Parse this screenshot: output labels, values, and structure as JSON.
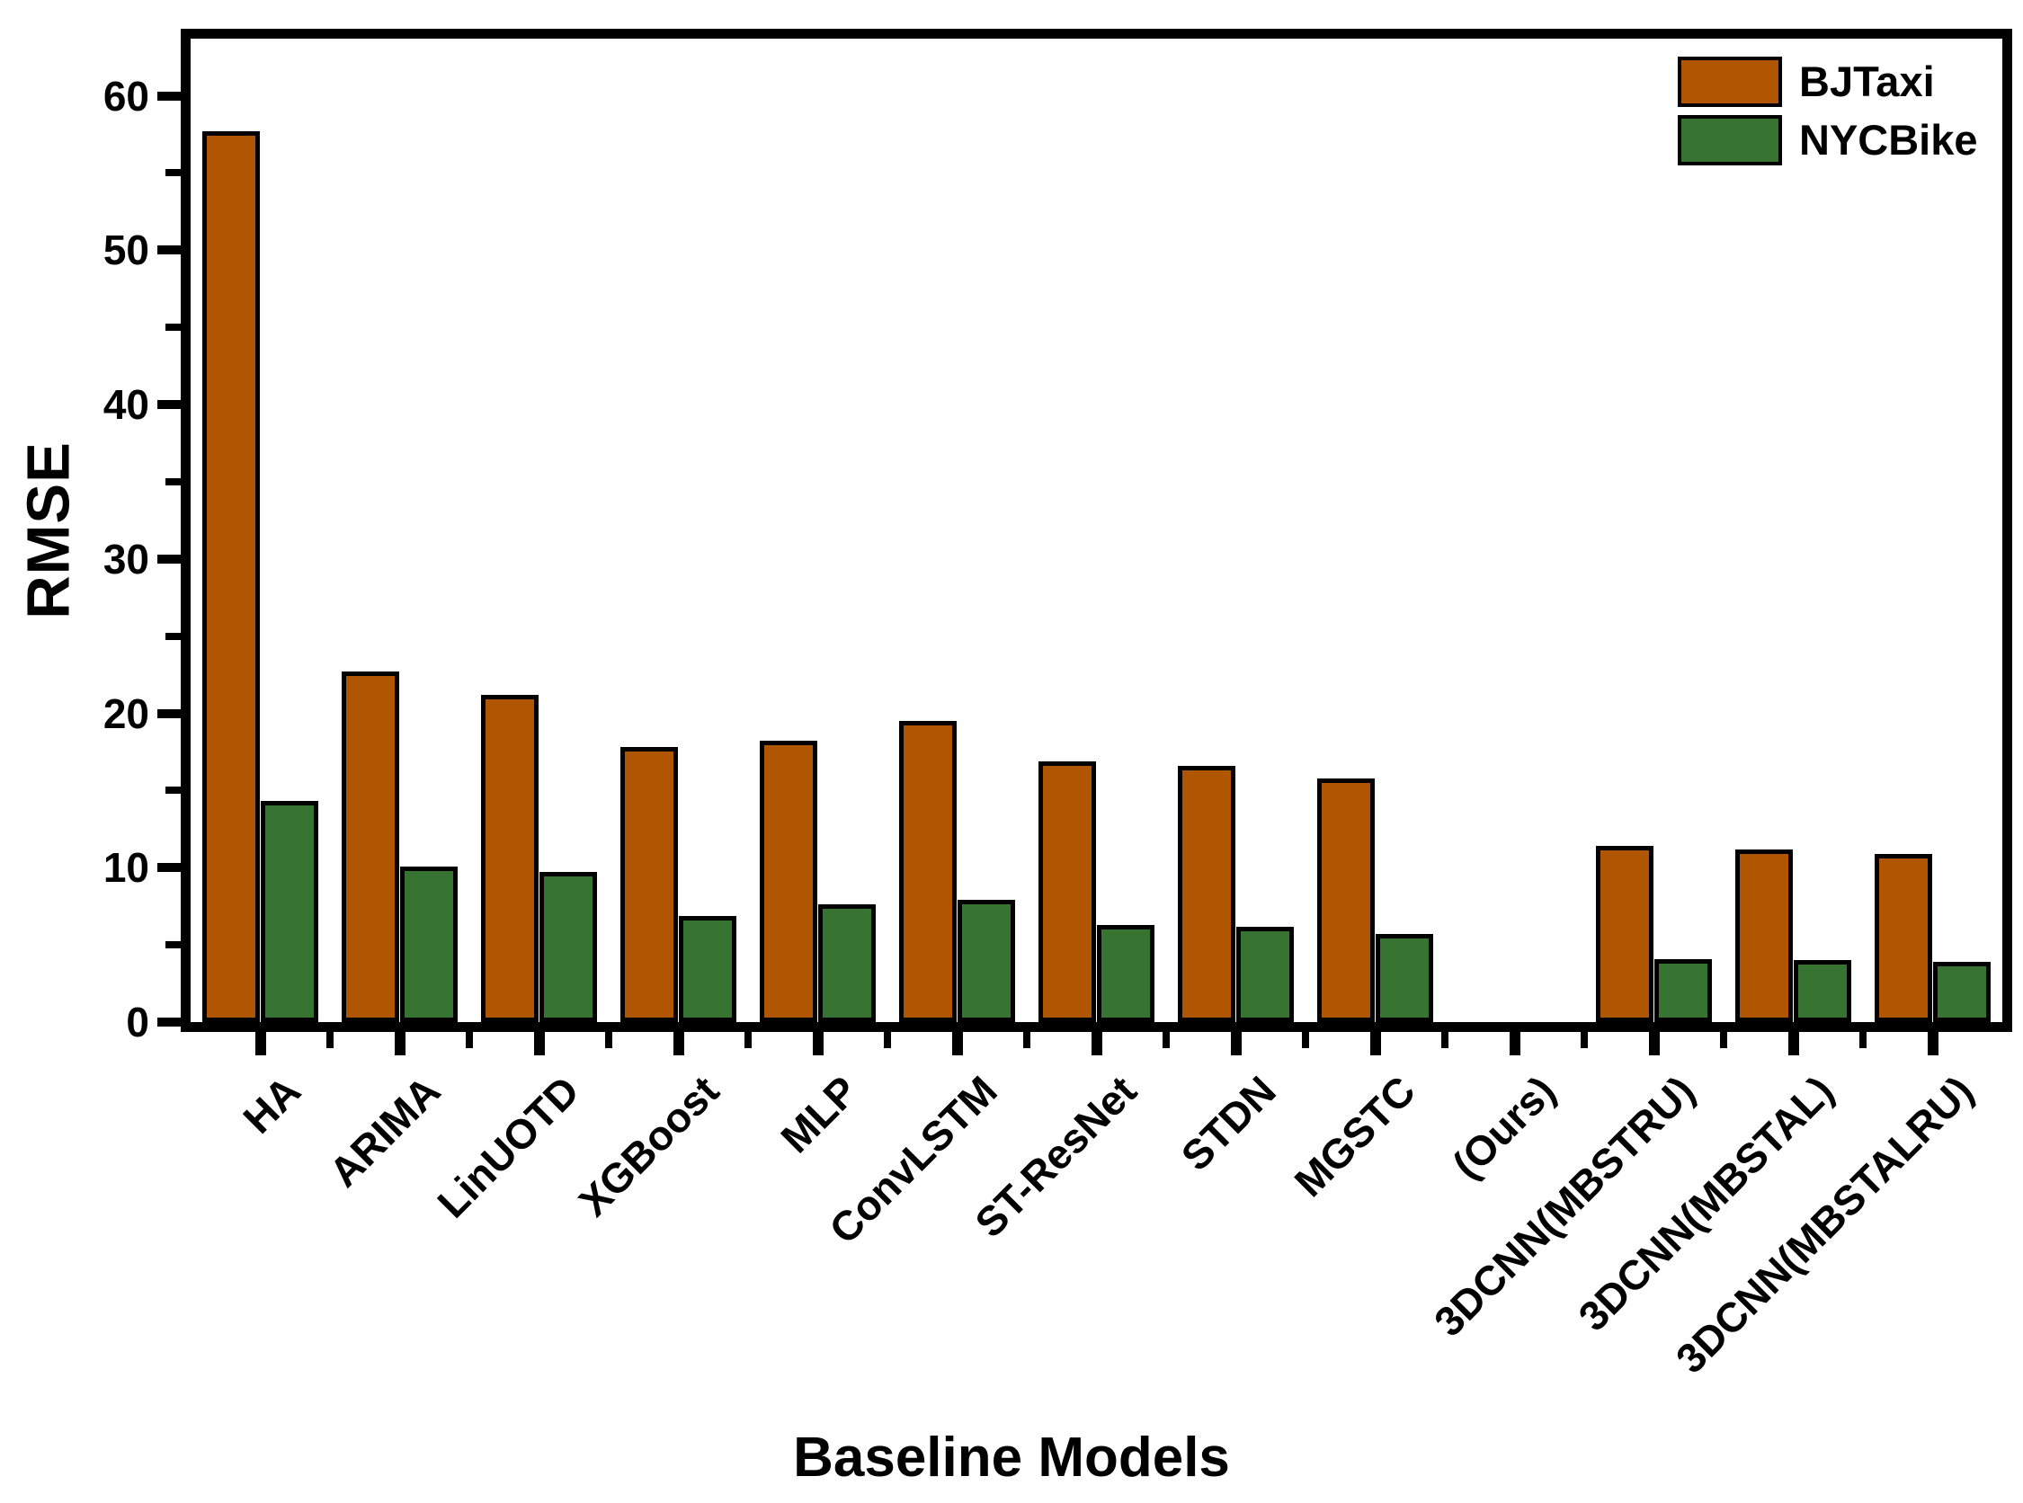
{
  "figure": {
    "background": "#FFFFFF",
    "frame_color": "#000000"
  },
  "chart_data": {
    "type": "bar",
    "title": "",
    "xlabel": "Baseline Models",
    "ylabel": "RMSE",
    "categories": [
      "HA",
      "ARIMA",
      "LinUOTD",
      "XGBoost",
      "MLP",
      "ConvLSTM",
      "ST-ResNet",
      "STDN",
      "MGSTC",
      "(Ours)",
      "3DCNN(MBSTRU)",
      "3DCNN(MBSTAL)",
      "3DCNN(MBSTALRU)"
    ],
    "series": [
      {
        "name": "BJTaxi",
        "color": "#B05502",
        "values": [
          57.7,
          22.7,
          21.2,
          17.8,
          18.2,
          19.5,
          16.9,
          16.6,
          15.8,
          null,
          11.4,
          11.2,
          10.9
        ]
      },
      {
        "name": "NYCBike",
        "color": "#377331",
        "values": [
          14.3,
          10.1,
          9.7,
          6.9,
          7.6,
          7.9,
          6.3,
          6.2,
          5.7,
          null,
          4.1,
          4.0,
          3.9
        ]
      }
    ],
    "ylim": [
      0,
      63.7
    ],
    "yticks_major": [
      0,
      10,
      20,
      30,
      40,
      50,
      60
    ],
    "ytick_labels": [
      "0",
      "10",
      "20",
      "30",
      "40",
      "50",
      "60"
    ],
    "yticks_minor": [
      5,
      15,
      25,
      35,
      45,
      55
    ],
    "bar_edge_color": "#000000",
    "legend_position": "top-right",
    "grid": false
  }
}
